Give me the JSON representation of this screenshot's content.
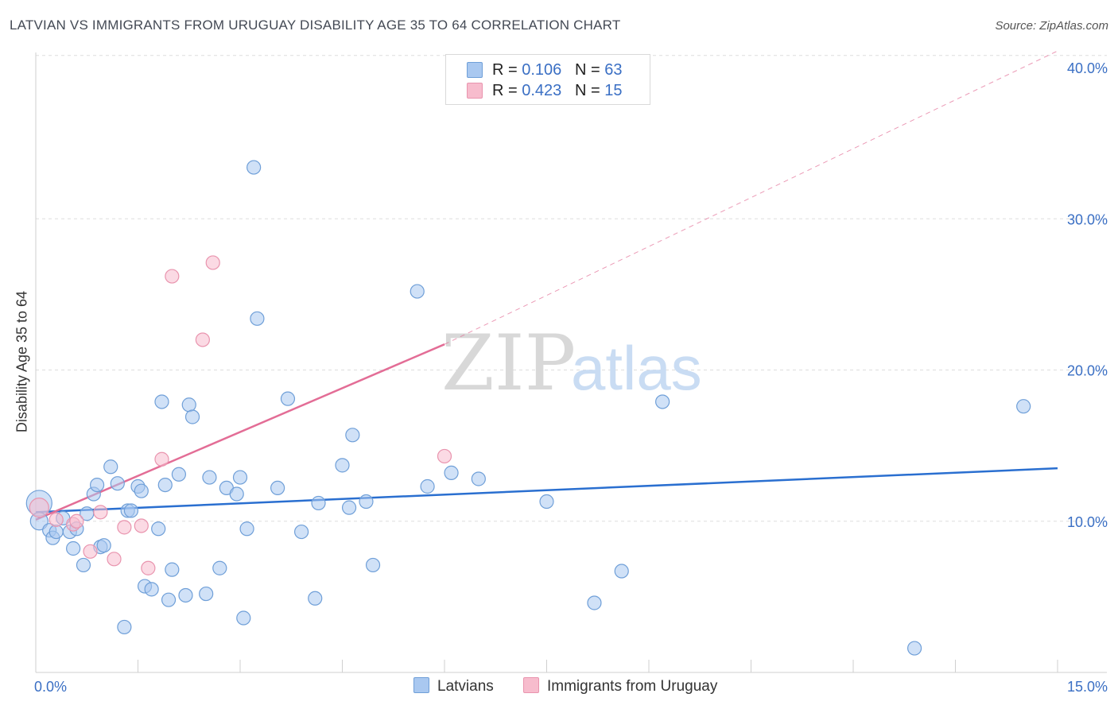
{
  "title": "LATVIAN VS IMMIGRANTS FROM URUGUAY DISABILITY AGE 35 TO 64 CORRELATION CHART",
  "source": "Source: ZipAtlas.com",
  "watermark": {
    "zip": "ZIP",
    "atlas": "atlas"
  },
  "legend": {
    "rows": [
      {
        "r_label": "R = ",
        "r_value": "0.106",
        "n_label": "N = ",
        "n_value": "63",
        "color": "#a9c8f0"
      },
      {
        "r_label": "R = ",
        "r_value": "0.423",
        "n_label": "N = ",
        "n_value": "15",
        "color": "#f7bccd"
      }
    ]
  },
  "bottom_legend": [
    {
      "label": "Latvians",
      "color": "#a9c8f0"
    },
    {
      "label": "Immigrants from Uruguay",
      "color": "#f7bccd"
    }
  ],
  "colors": {
    "blue_fill": "#a9c8f0",
    "blue_stroke": "#6f9fd8",
    "blue_line": "#2a6fd0",
    "pink_fill": "#f7bccd",
    "pink_stroke": "#e994ae",
    "pink_line": "#e36d96",
    "axis_text": "#3a6fc4",
    "grid": "#dddddd"
  },
  "chart_data": {
    "type": "scatter",
    "title": "LATVIAN VS IMMIGRANTS FROM URUGUAY DISABILITY AGE 35 TO 64 CORRELATION CHART",
    "xlabel": "",
    "ylabel": "Disability Age 35 to 64",
    "xlim": [
      0,
      15
    ],
    "ylim": [
      0,
      41
    ],
    "x_tick_labels": [
      {
        "value": 0,
        "label": "0.0%"
      },
      {
        "value": 15,
        "label": "15.0%"
      }
    ],
    "y_tick_labels": [
      {
        "value": 10,
        "label": "10.0%"
      },
      {
        "value": 20,
        "label": "20.0%"
      },
      {
        "value": 30,
        "label": "30.0%"
      },
      {
        "value": 40,
        "label": "40.0%"
      }
    ],
    "y_gridlines": [
      10,
      20,
      30,
      40.8
    ],
    "x_ticks": [
      0,
      1.5,
      3,
      4.5,
      6,
      7.5,
      9,
      10.5,
      12,
      13.5,
      15
    ],
    "series": [
      {
        "name": "Latvians",
        "r": 0.106,
        "n": 63,
        "trend": {
          "x1": 0,
          "y1": 10.6,
          "x2": 15,
          "y2": 13.5
        },
        "points": [
          [
            0.05,
            11.2
          ],
          [
            0.05,
            10.0
          ],
          [
            0.2,
            9.4
          ],
          [
            0.25,
            8.9
          ],
          [
            0.3,
            9.3
          ],
          [
            0.4,
            10.2
          ],
          [
            0.5,
            9.3
          ],
          [
            0.55,
            8.2
          ],
          [
            0.6,
            9.5
          ],
          [
            0.7,
            7.1
          ],
          [
            0.75,
            10.5
          ],
          [
            0.85,
            11.8
          ],
          [
            0.9,
            12.4
          ],
          [
            0.95,
            8.3
          ],
          [
            1.0,
            8.4
          ],
          [
            1.1,
            13.6
          ],
          [
            1.2,
            12.5
          ],
          [
            1.3,
            3.0
          ],
          [
            1.35,
            10.7
          ],
          [
            1.4,
            10.7
          ],
          [
            1.5,
            12.3
          ],
          [
            1.55,
            12.0
          ],
          [
            1.6,
            5.7
          ],
          [
            1.7,
            5.5
          ],
          [
            1.8,
            9.5
          ],
          [
            1.85,
            17.9
          ],
          [
            1.9,
            12.4
          ],
          [
            1.95,
            4.8
          ],
          [
            2.0,
            6.8
          ],
          [
            2.1,
            13.1
          ],
          [
            2.2,
            5.1
          ],
          [
            2.25,
            17.7
          ],
          [
            2.3,
            16.9
          ],
          [
            2.5,
            5.2
          ],
          [
            2.55,
            12.9
          ],
          [
            2.7,
            6.9
          ],
          [
            2.8,
            12.2
          ],
          [
            2.95,
            11.8
          ],
          [
            3.0,
            12.9
          ],
          [
            3.05,
            3.6
          ],
          [
            3.1,
            9.5
          ],
          [
            3.2,
            33.4
          ],
          [
            3.25,
            23.4
          ],
          [
            3.55,
            12.2
          ],
          [
            3.7,
            18.1
          ],
          [
            3.9,
            9.3
          ],
          [
            4.1,
            4.9
          ],
          [
            4.15,
            11.2
          ],
          [
            4.5,
            13.7
          ],
          [
            4.6,
            10.9
          ],
          [
            4.65,
            15.7
          ],
          [
            4.85,
            11.3
          ],
          [
            4.95,
            7.1
          ],
          [
            5.6,
            25.2
          ],
          [
            5.75,
            12.3
          ],
          [
            6.1,
            13.2
          ],
          [
            6.5,
            12.8
          ],
          [
            7.5,
            11.3
          ],
          [
            8.2,
            4.6
          ],
          [
            8.6,
            6.7
          ],
          [
            9.2,
            17.9
          ],
          [
            12.9,
            1.6
          ],
          [
            14.5,
            17.6
          ]
        ]
      },
      {
        "name": "Immigrants from Uruguay",
        "r": 0.423,
        "n": 15,
        "trend": {
          "x1": 0,
          "y1": 10.1,
          "x2": 6.0,
          "y2": 21.7,
          "dash_x2": 15,
          "dash_y2": 41.1
        },
        "points": [
          [
            0.05,
            10.9
          ],
          [
            0.3,
            10.1
          ],
          [
            0.55,
            9.8
          ],
          [
            0.6,
            10.0
          ],
          [
            0.8,
            8.0
          ],
          [
            0.95,
            10.6
          ],
          [
            1.15,
            7.5
          ],
          [
            1.3,
            9.6
          ],
          [
            1.55,
            9.7
          ],
          [
            1.65,
            6.9
          ],
          [
            1.85,
            14.1
          ],
          [
            2.0,
            26.2
          ],
          [
            2.45,
            22.0
          ],
          [
            2.6,
            27.1
          ],
          [
            6.0,
            14.3
          ]
        ]
      }
    ]
  }
}
